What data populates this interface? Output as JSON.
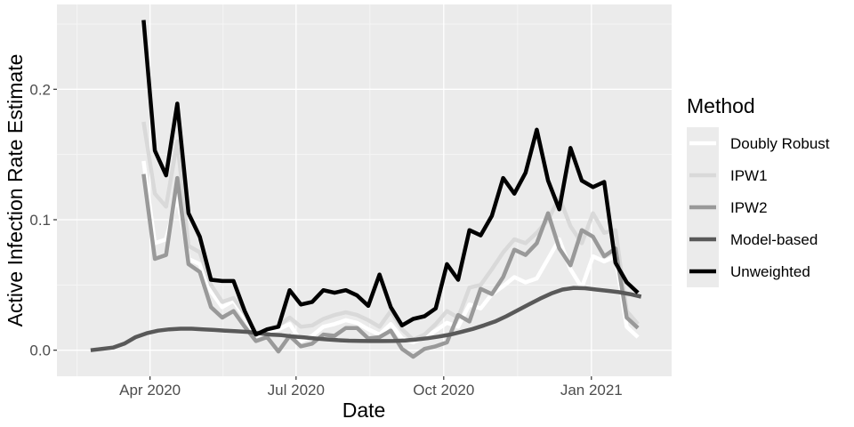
{
  "chart_data": {
    "type": "line",
    "title": "",
    "xlabel": "Date",
    "ylabel": "Active Infection Rate Estimate",
    "x_axis_type": "date",
    "xlim": [
      "2020-02-03",
      "2021-02-20"
    ],
    "ylim": [
      -0.02,
      0.265
    ],
    "x_ticks": [
      {
        "date": "2020-04-01",
        "label": "Apr 2020"
      },
      {
        "date": "2020-07-01",
        "label": "Jul 2020"
      },
      {
        "date": "2020-10-01",
        "label": "Oct 2020"
      },
      {
        "date": "2021-01-01",
        "label": "Jan 2021"
      }
    ],
    "y_ticks": [
      {
        "value": 0.0,
        "label": "0.0"
      },
      {
        "value": 0.1,
        "label": "0.1"
      },
      {
        "value": 0.2,
        "label": "0.2"
      }
    ],
    "grid": true,
    "background": "#ebebeb",
    "legend": {
      "title": "Method",
      "position": "right"
    },
    "series": [
      {
        "name": "Doubly Robust",
        "color": "#ffffff",
        "x": [
          "2020-03-28",
          "2020-04-04",
          "2020-04-11",
          "2020-04-18",
          "2020-04-25",
          "2020-05-02",
          "2020-05-09",
          "2020-05-16",
          "2020-05-23",
          "2020-05-30",
          "2020-06-06",
          "2020-06-13",
          "2020-06-20",
          "2020-06-27",
          "2020-07-04",
          "2020-07-11",
          "2020-07-18",
          "2020-07-25",
          "2020-08-01",
          "2020-08-08",
          "2020-08-15",
          "2020-08-22",
          "2020-08-29",
          "2020-09-05",
          "2020-09-12",
          "2020-09-19",
          "2020-09-26",
          "2020-10-03",
          "2020-10-10",
          "2020-10-17",
          "2020-10-24",
          "2020-10-31",
          "2020-11-07",
          "2020-11-14",
          "2020-11-21",
          "2020-11-28",
          "2020-12-05",
          "2020-12-12",
          "2020-12-19",
          "2020-12-26",
          "2021-01-02",
          "2021-01-09",
          "2021-01-16",
          "2021-01-23",
          "2021-01-30"
        ],
        "y": [
          0.145,
          0.082,
          0.085,
          0.118,
          0.07,
          0.066,
          0.045,
          0.033,
          0.038,
          0.025,
          0.011,
          0.014,
          0.016,
          0.02,
          0.007,
          0.011,
          0.018,
          0.02,
          0.023,
          0.021,
          0.016,
          0.012,
          0.02,
          0.009,
          0.006,
          0.01,
          0.015,
          0.021,
          0.018,
          0.035,
          0.032,
          0.043,
          0.049,
          0.056,
          0.052,
          0.055,
          0.07,
          0.085,
          0.062,
          0.048,
          0.072,
          0.068,
          0.072,
          0.018,
          0.01
        ]
      },
      {
        "name": "IPW1",
        "color": "#d9d9d9",
        "x": [
          "2020-03-28",
          "2020-04-04",
          "2020-04-11",
          "2020-04-18",
          "2020-04-25",
          "2020-05-02",
          "2020-05-09",
          "2020-05-16",
          "2020-05-23",
          "2020-05-30",
          "2020-06-06",
          "2020-06-13",
          "2020-06-20",
          "2020-06-27",
          "2020-07-04",
          "2020-07-11",
          "2020-07-18",
          "2020-07-25",
          "2020-08-01",
          "2020-08-08",
          "2020-08-15",
          "2020-08-22",
          "2020-08-29",
          "2020-09-05",
          "2020-09-12",
          "2020-09-19",
          "2020-09-26",
          "2020-10-03",
          "2020-10-10",
          "2020-10-17",
          "2020-10-24",
          "2020-10-31",
          "2020-11-07",
          "2020-11-14",
          "2020-11-21",
          "2020-11-28",
          "2020-12-05",
          "2020-12-12",
          "2020-12-19",
          "2020-12-26",
          "2021-01-02",
          "2021-01-09",
          "2021-01-16",
          "2021-01-23",
          "2021-01-30"
        ],
        "y": [
          0.175,
          0.12,
          0.11,
          0.16,
          0.08,
          0.075,
          0.05,
          0.037,
          0.04,
          0.028,
          0.013,
          0.016,
          0.019,
          0.025,
          0.018,
          0.019,
          0.024,
          0.027,
          0.029,
          0.027,
          0.023,
          0.018,
          0.03,
          0.016,
          0.008,
          0.012,
          0.02,
          0.03,
          0.025,
          0.048,
          0.05,
          0.062,
          0.075,
          0.085,
          0.082,
          0.09,
          0.1,
          0.117,
          0.095,
          0.082,
          0.105,
          0.09,
          0.092,
          0.03,
          0.02
        ]
      },
      {
        "name": "IPW2",
        "color": "#999999",
        "x": [
          "2020-03-28",
          "2020-04-04",
          "2020-04-11",
          "2020-04-18",
          "2020-04-25",
          "2020-05-02",
          "2020-05-09",
          "2020-05-16",
          "2020-05-23",
          "2020-05-30",
          "2020-06-06",
          "2020-06-13",
          "2020-06-20",
          "2020-06-27",
          "2020-07-04",
          "2020-07-11",
          "2020-07-18",
          "2020-07-25",
          "2020-08-01",
          "2020-08-08",
          "2020-08-15",
          "2020-08-22",
          "2020-08-29",
          "2020-09-05",
          "2020-09-12",
          "2020-09-19",
          "2020-09-26",
          "2020-10-03",
          "2020-10-10",
          "2020-10-17",
          "2020-10-24",
          "2020-10-31",
          "2020-11-07",
          "2020-11-14",
          "2020-11-21",
          "2020-11-28",
          "2020-12-05",
          "2020-12-12",
          "2020-12-19",
          "2020-12-26",
          "2021-01-02",
          "2021-01-09",
          "2021-01-16",
          "2021-01-23",
          "2021-01-30"
        ],
        "y": [
          0.135,
          0.07,
          0.073,
          0.132,
          0.066,
          0.06,
          0.033,
          0.025,
          0.03,
          0.018,
          0.007,
          0.01,
          -0.001,
          0.011,
          0.003,
          0.005,
          0.012,
          0.011,
          0.017,
          0.017,
          0.009,
          0.01,
          0.015,
          0.001,
          -0.005,
          0.001,
          0.003,
          0.006,
          0.027,
          0.022,
          0.047,
          0.043,
          0.056,
          0.077,
          0.073,
          0.082,
          0.105,
          0.078,
          0.065,
          0.092,
          0.087,
          0.072,
          0.078,
          0.025,
          0.017
        ]
      },
      {
        "name": "Model-based",
        "color": "#595959",
        "x": [
          "2020-02-24",
          "2020-03-02",
          "2020-03-09",
          "2020-03-16",
          "2020-03-23",
          "2020-03-30",
          "2020-04-06",
          "2020-04-13",
          "2020-04-20",
          "2020-04-27",
          "2020-05-04",
          "2020-05-11",
          "2020-05-18",
          "2020-05-25",
          "2020-06-01",
          "2020-06-08",
          "2020-06-15",
          "2020-06-22",
          "2020-06-29",
          "2020-07-06",
          "2020-07-13",
          "2020-07-20",
          "2020-07-27",
          "2020-08-03",
          "2020-08-10",
          "2020-08-17",
          "2020-08-24",
          "2020-08-31",
          "2020-09-07",
          "2020-09-14",
          "2020-09-21",
          "2020-09-28",
          "2020-10-05",
          "2020-10-12",
          "2020-10-19",
          "2020-10-26",
          "2020-11-02",
          "2020-11-09",
          "2020-11-16",
          "2020-11-23",
          "2020-11-30",
          "2020-12-07",
          "2020-12-14",
          "2020-12-21",
          "2020-12-28",
          "2021-01-04",
          "2021-01-11",
          "2021-01-18",
          "2021-01-25",
          "2021-02-01"
        ],
        "y": [
          0.0,
          0.001,
          0.002,
          0.005,
          0.01,
          0.013,
          0.015,
          0.016,
          0.0165,
          0.0165,
          0.016,
          0.0155,
          0.015,
          0.0145,
          0.014,
          0.013,
          0.012,
          0.0115,
          0.0105,
          0.0098,
          0.009,
          0.0083,
          0.0077,
          0.0073,
          0.0071,
          0.007,
          0.007,
          0.0071,
          0.0075,
          0.0082,
          0.0092,
          0.0105,
          0.012,
          0.014,
          0.0163,
          0.019,
          0.022,
          0.026,
          0.0305,
          0.035,
          0.0395,
          0.0435,
          0.0465,
          0.0478,
          0.0475,
          0.0465,
          0.0455,
          0.0445,
          0.043,
          0.041
        ]
      },
      {
        "name": "Unweighted",
        "color": "#000000",
        "x": [
          "2020-03-28",
          "2020-04-04",
          "2020-04-11",
          "2020-04-18",
          "2020-04-25",
          "2020-05-02",
          "2020-05-09",
          "2020-05-16",
          "2020-05-23",
          "2020-05-30",
          "2020-06-06",
          "2020-06-13",
          "2020-06-20",
          "2020-06-27",
          "2020-07-04",
          "2020-07-11",
          "2020-07-18",
          "2020-07-25",
          "2020-08-01",
          "2020-08-08",
          "2020-08-15",
          "2020-08-22",
          "2020-08-29",
          "2020-09-05",
          "2020-09-12",
          "2020-09-19",
          "2020-09-26",
          "2020-10-03",
          "2020-10-10",
          "2020-10-17",
          "2020-10-24",
          "2020-10-31",
          "2020-11-07",
          "2020-11-14",
          "2020-11-21",
          "2020-11-28",
          "2020-12-05",
          "2020-12-12",
          "2020-12-19",
          "2020-12-26",
          "2021-01-02",
          "2021-01-09",
          "2021-01-16",
          "2021-01-23",
          "2021-01-30"
        ],
        "y": [
          0.253,
          0.153,
          0.134,
          0.189,
          0.105,
          0.087,
          0.054,
          0.053,
          0.053,
          0.03,
          0.012,
          0.016,
          0.018,
          0.046,
          0.035,
          0.037,
          0.046,
          0.044,
          0.046,
          0.042,
          0.034,
          0.058,
          0.033,
          0.019,
          0.024,
          0.026,
          0.032,
          0.066,
          0.054,
          0.092,
          0.088,
          0.103,
          0.132,
          0.12,
          0.136,
          0.169,
          0.13,
          0.108,
          0.155,
          0.13,
          0.125,
          0.129,
          0.067,
          0.052,
          0.044
        ]
      }
    ]
  }
}
